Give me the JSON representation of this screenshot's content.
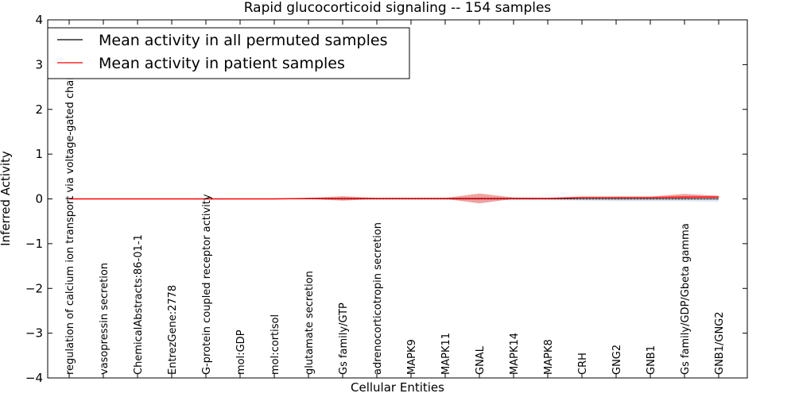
{
  "chart_data": {
    "type": "line",
    "title": "Rapid glucocorticoid signaling -- 154 samples",
    "xlabel": "Cellular Entities",
    "ylabel": "Inferred Activity",
    "ylim": [
      -4,
      4
    ],
    "yticks": [
      "4",
      "3",
      "2",
      "1",
      "0",
      "−1",
      "−2",
      "−3",
      "−4"
    ],
    "ytick_values": [
      4,
      3,
      2,
      1,
      0,
      -1,
      -2,
      -3,
      -4
    ],
    "categories": [
      "regulation of calcium ion transport via voltage-gated channel",
      "vasopressin secretion",
      "ChemicalAbstracts:86-01-1",
      "EntrezGene:2778",
      "G-protein coupled receptor activity",
      "mol:GDP",
      "mol:cortisol",
      "glutamate secretion",
      "Gs family/GTP",
      "adrenocorticotropin secretion",
      "MAPK9",
      "MAPK11",
      "GNAL",
      "MAPK14",
      "MAPK8",
      "CRH",
      "GNG2",
      "GNB1",
      "Gs family/GDP/Gbeta gamma",
      "GNB1/GNG2"
    ],
    "series": [
      {
        "name": "Mean activity in all permuted samples",
        "color": "#000000",
        "values": [
          0,
          0,
          0,
          0,
          0,
          0,
          0,
          0,
          0,
          0,
          0,
          0,
          0,
          0,
          0,
          0,
          0,
          0,
          0,
          0
        ],
        "band_low": [
          0,
          0,
          0,
          0,
          0,
          0,
          0,
          0,
          -0.02,
          -0.02,
          -0.02,
          -0.02,
          -0.03,
          -0.03,
          -0.03,
          -0.04,
          -0.05,
          -0.05,
          -0.05,
          -0.06
        ],
        "band_high": [
          0,
          0,
          0,
          0,
          0,
          0,
          0,
          0,
          0.02,
          0.02,
          0.02,
          0.02,
          0.03,
          0.03,
          0.03,
          0.04,
          0.05,
          0.05,
          0.05,
          0.06
        ],
        "band_color": "#b0c4de"
      },
      {
        "name": "Mean activity in patient samples",
        "color": "#ff0000",
        "values": [
          0,
          0,
          0,
          0,
          0,
          0,
          0,
          0.01,
          0.01,
          0.01,
          0.01,
          0.01,
          0.01,
          0.01,
          0.01,
          0.03,
          0.03,
          0.03,
          0.04,
          0.04
        ],
        "band_low": [
          0,
          0,
          0,
          0,
          0,
          0,
          0,
          0,
          -0.04,
          0,
          0,
          0,
          -0.1,
          0,
          0,
          0.02,
          0.02,
          0.02,
          0.01,
          0.02
        ],
        "band_high": [
          0,
          0,
          0,
          0,
          0,
          0,
          0,
          0.02,
          0.06,
          0.02,
          0.02,
          0.02,
          0.12,
          0.03,
          0.02,
          0.05,
          0.05,
          0.05,
          0.11,
          0.07
        ],
        "band_color": "#e06666"
      }
    ],
    "legend_position": "top-left"
  }
}
